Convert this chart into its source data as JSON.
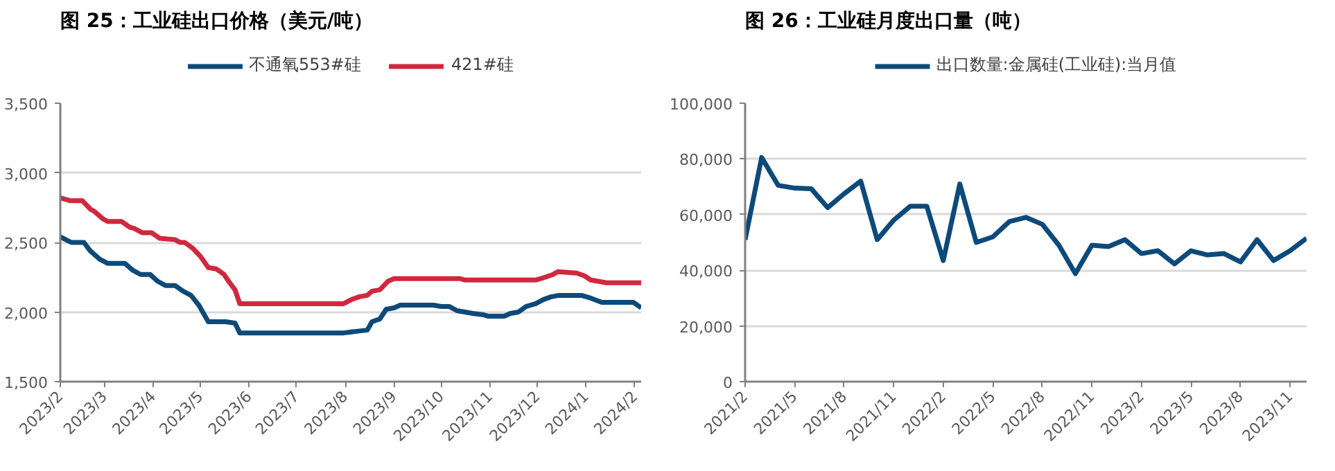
{
  "chart_data": [
    {
      "type": "line",
      "title": "图 25：工业硅出口价格（美元/吨）",
      "legend": "top",
      "grid": "y",
      "line_style": "solid",
      "marker": "none",
      "xlim": [
        "2023-02-01",
        "2024-02-05"
      ],
      "ylim": [
        1500,
        3500
      ],
      "yticks": [
        {
          "value": 1500,
          "label": "1,500"
        },
        {
          "value": 2000,
          "label": "2,000"
        },
        {
          "value": 2500,
          "label": "2,500"
        },
        {
          "value": 3000,
          "label": "3,000"
        },
        {
          "value": 3500,
          "label": "3,500"
        }
      ],
      "xticks": [
        {
          "value": "2023-02-01",
          "label": "2023/2"
        },
        {
          "value": "2023-03-01",
          "label": "2023/3"
        },
        {
          "value": "2023-04-01",
          "label": "2023/4"
        },
        {
          "value": "2023-05-01",
          "label": "2023/5"
        },
        {
          "value": "2023-06-01",
          "label": "2023/6"
        },
        {
          "value": "2023-07-01",
          "label": "2023/7"
        },
        {
          "value": "2023-08-01",
          "label": "2023/8"
        },
        {
          "value": "2023-09-01",
          "label": "2023/9"
        },
        {
          "value": "2023-10-01",
          "label": "2023/10"
        },
        {
          "value": "2023-11-01",
          "label": "2023/11"
        },
        {
          "value": "2023-12-01",
          "label": "2023/12"
        },
        {
          "value": "2024-01-01",
          "label": "2024/1"
        },
        {
          "value": "2024-02-01",
          "label": "2024/2"
        }
      ],
      "series": [
        {
          "name": "不通氧553#硅",
          "color": "#0d4a7a",
          "x": [
            "2023-02-01",
            "2023-02-08",
            "2023-02-16",
            "2023-02-20",
            "2023-02-26",
            "2023-03-03",
            "2023-03-14",
            "2023-03-19",
            "2023-03-24",
            "2023-03-30",
            "2023-04-04",
            "2023-04-09",
            "2023-04-15",
            "2023-04-20",
            "2023-04-25",
            "2023-04-30",
            "2023-05-03",
            "2023-05-06",
            "2023-05-17",
            "2023-05-23",
            "2023-05-26",
            "2023-07-31",
            "2023-08-07",
            "2023-08-15",
            "2023-08-18",
            "2023-08-23",
            "2023-08-27",
            "2023-09-01",
            "2023-09-05",
            "2023-09-26",
            "2023-10-01",
            "2023-10-06",
            "2023-10-11",
            "2023-10-21",
            "2023-10-28",
            "2023-10-31",
            "2023-11-10",
            "2023-11-14",
            "2023-11-19",
            "2023-11-24",
            "2023-11-30",
            "2023-12-05",
            "2023-12-10",
            "2023-12-15",
            "2023-12-29",
            "2024-01-04",
            "2024-01-11",
            "2024-01-31",
            "2024-02-05"
          ],
          "values": [
            2540,
            2500,
            2500,
            2440,
            2380,
            2350,
            2350,
            2300,
            2270,
            2270,
            2220,
            2190,
            2190,
            2150,
            2120,
            2050,
            1990,
            1930,
            1930,
            1920,
            1850,
            1850,
            1860,
            1870,
            1930,
            1950,
            2020,
            2030,
            2050,
            2050,
            2040,
            2040,
            2010,
            1990,
            1980,
            1970,
            1970,
            1990,
            2000,
            2040,
            2060,
            2090,
            2110,
            2120,
            2120,
            2100,
            2070,
            2070,
            2030
          ]
        },
        {
          "name": "421#硅",
          "color": "#d0283e",
          "x": [
            "2023-02-01",
            "2023-02-07",
            "2023-02-15",
            "2023-02-20",
            "2023-02-23",
            "2023-02-28",
            "2023-03-03",
            "2023-03-12",
            "2023-03-17",
            "2023-03-20",
            "2023-03-25",
            "2023-03-31",
            "2023-04-05",
            "2023-04-15",
            "2023-04-18",
            "2023-04-21",
            "2023-04-26",
            "2023-05-01",
            "2023-05-06",
            "2023-05-11",
            "2023-05-16",
            "2023-05-19",
            "2023-05-23",
            "2023-05-26",
            "2023-07-31",
            "2023-08-05",
            "2023-08-10",
            "2023-08-15",
            "2023-08-18",
            "2023-08-23",
            "2023-08-28",
            "2023-09-01",
            "2023-10-13",
            "2023-10-16",
            "2023-11-30",
            "2023-12-06",
            "2023-12-11",
            "2023-12-14",
            "2023-12-26",
            "2023-12-31",
            "2024-01-04",
            "2024-01-09",
            "2024-01-14",
            "2024-02-05"
          ],
          "values": [
            2820,
            2800,
            2800,
            2740,
            2720,
            2670,
            2650,
            2650,
            2610,
            2600,
            2570,
            2570,
            2530,
            2520,
            2500,
            2500,
            2460,
            2400,
            2320,
            2310,
            2270,
            2220,
            2160,
            2060,
            2060,
            2090,
            2110,
            2120,
            2150,
            2160,
            2220,
            2240,
            2240,
            2230,
            2230,
            2250,
            2270,
            2290,
            2280,
            2260,
            2230,
            2220,
            2210,
            2210
          ]
        }
      ]
    },
    {
      "type": "line",
      "title": "图 26：工业硅月度出口量（吨）",
      "legend": "top",
      "grid": "y",
      "line_style": "solid",
      "marker": "none",
      "categories": [
        "2021/2",
        null,
        null,
        "2021/5",
        null,
        null,
        "2021/8",
        null,
        null,
        "2021/11",
        null,
        null,
        "2022/2",
        null,
        null,
        "2022/5",
        null,
        null,
        "2022/8",
        null,
        null,
        "2022/11",
        null,
        null,
        "2023/2",
        null,
        null,
        "2023/5",
        null,
        null,
        "2023/8",
        null,
        null,
        "2023/11",
        null
      ],
      "ylim": [
        0,
        100000
      ],
      "yticks": [
        0,
        {
          "value": 20000,
          "label": "20,000"
        },
        {
          "value": 40000,
          "label": "40,000"
        },
        {
          "value": 60000,
          "label": "60,000"
        },
        {
          "value": 80000,
          "label": "80,000"
        },
        {
          "value": 100000,
          "label": "100,000"
        }
      ],
      "series": [
        {
          "name": "出口数量:金属硅(工业硅):当月值",
          "color": "#0d4a7a",
          "values": [
            51000,
            80500,
            70500,
            69500,
            69300,
            62500,
            67500,
            72000,
            51000,
            58000,
            63000,
            63000,
            43500,
            71000,
            50000,
            52000,
            57500,
            59000,
            56500,
            49000,
            38800,
            49000,
            48500,
            51000,
            46000,
            47000,
            42300,
            47000,
            45500,
            46000,
            43000,
            51000,
            43500,
            47000,
            51500
          ]
        }
      ]
    }
  ]
}
